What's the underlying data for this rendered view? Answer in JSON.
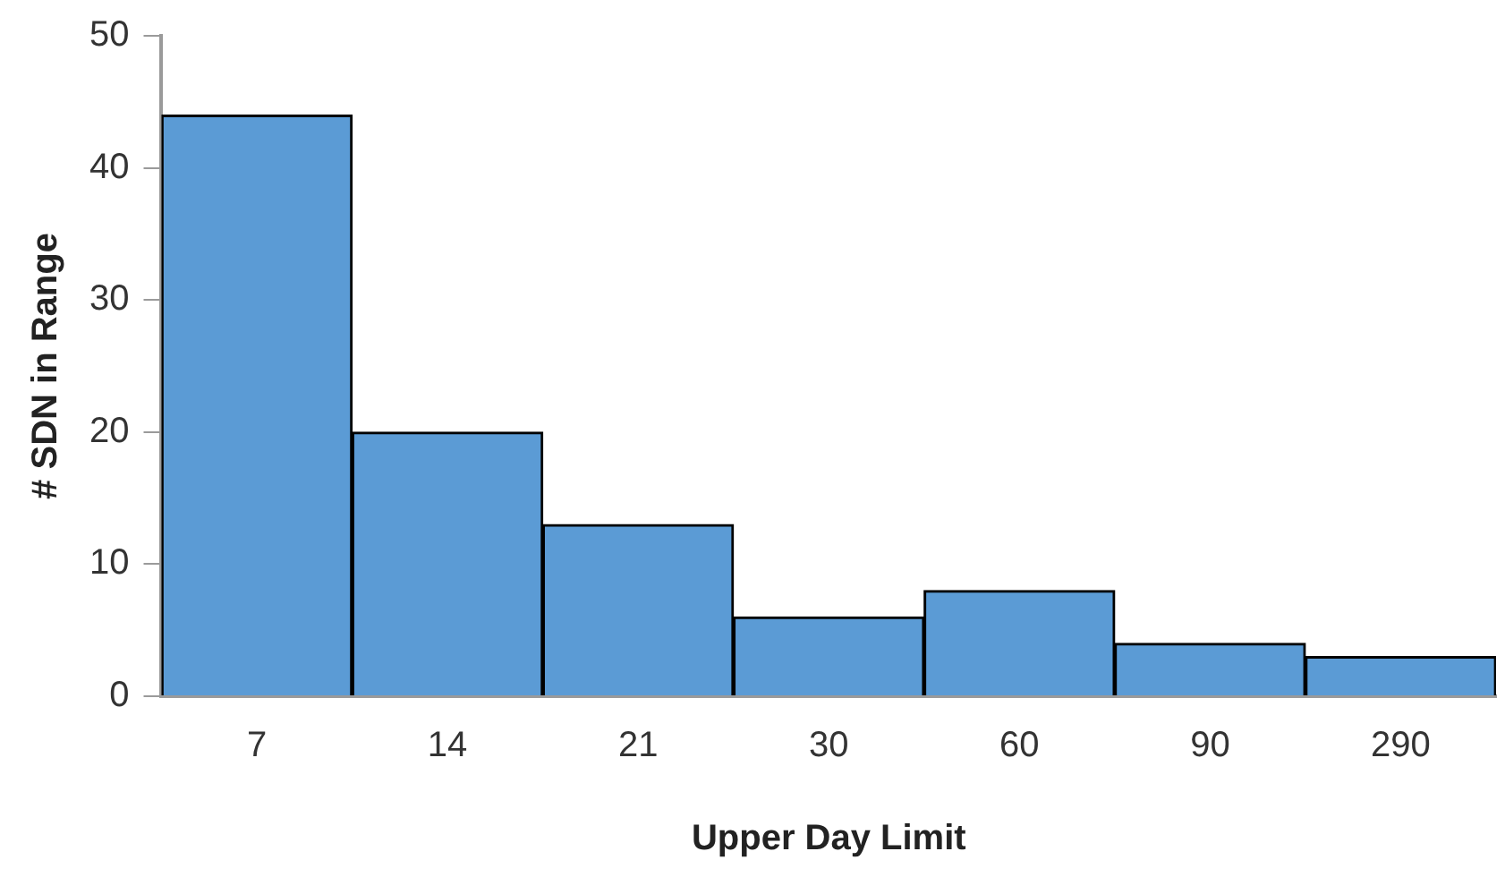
{
  "chart_data": {
    "type": "bar",
    "xlabel": "Upper Day Limit",
    "ylabel": "# SDN in Range",
    "categories": [
      "7",
      "14",
      "21",
      "30",
      "60",
      "90",
      "290"
    ],
    "values": [
      44,
      20,
      13,
      6,
      8,
      4,
      3
    ],
    "color": "#5b9bd5",
    "ylim": [
      0,
      50
    ],
    "yticks": [
      0,
      10,
      20,
      30,
      40,
      50
    ],
    "grid": false,
    "legend": false
  }
}
